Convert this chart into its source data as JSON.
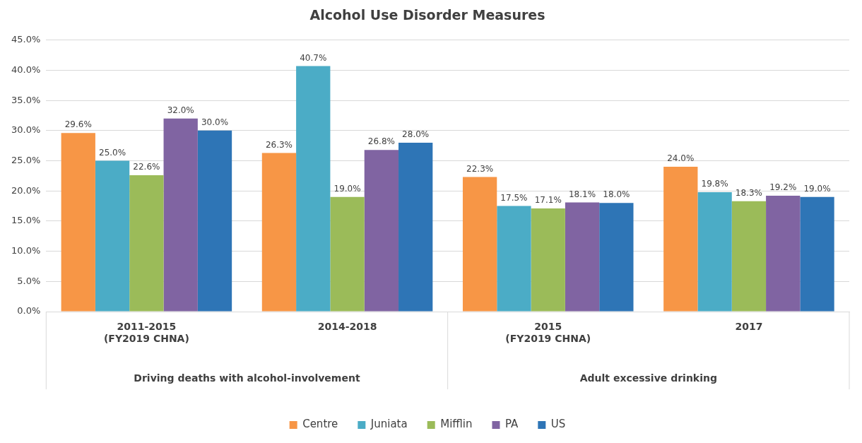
{
  "chart_data": {
    "type": "bar",
    "title": "Alcohol Use Disorder Measures",
    "categories": [
      "2011-2015\n(FY2019 CHNA)",
      "2014-2018",
      "2015\n(FY2019 CHNA)",
      "2017"
    ],
    "annotations": [
      "Driving deaths with alcohol-involvement",
      "Adult excessive drinking"
    ],
    "series": [
      {
        "name": "Centre",
        "color": "#f79646",
        "values": [
          29.6,
          26.3,
          22.3,
          24.0
        ],
        "value_labels": [
          "29.6%",
          "26.3%",
          "22.3%",
          "24.0%"
        ]
      },
      {
        "name": "Juniata",
        "color": "#4bacc6",
        "values": [
          25.0,
          40.7,
          17.5,
          19.8
        ],
        "value_labels": [
          "25.0%",
          "40.7%",
          "17.5%",
          "19.8%"
        ]
      },
      {
        "name": "Mifflin",
        "color": "#9bbb59",
        "values": [
          22.6,
          19.0,
          17.1,
          18.3
        ],
        "value_labels": [
          "22.6%",
          "19.0%",
          "17.1%",
          "18.3%"
        ]
      },
      {
        "name": "PA",
        "color": "#8064a2",
        "values": [
          32.0,
          26.8,
          18.1,
          19.2
        ],
        "value_labels": [
          "32.0%",
          "26.8%",
          "18.1%",
          "19.2%"
        ]
      },
      {
        "name": "US",
        "color": "#2e75b6",
        "values": [
          30.0,
          28.0,
          18.0,
          19.0
        ],
        "value_labels": [
          "30.0%",
          "28.0%",
          "18.0%",
          "19.0%"
        ]
      }
    ],
    "ylim": [
      0,
      45
    ],
    "yticks": [
      {
        "value": 0,
        "label": "0.0%"
      },
      {
        "value": 5,
        "label": "5.0%"
      },
      {
        "value": 10,
        "label": "10.0%"
      },
      {
        "value": 15,
        "label": "15.0%"
      },
      {
        "value": 20,
        "label": "20.0%"
      },
      {
        "value": 25,
        "label": "25.0%"
      },
      {
        "value": 30,
        "label": "30.0%"
      },
      {
        "value": 35,
        "label": "35.0%"
      },
      {
        "value": 40,
        "label": "40.0%"
      },
      {
        "value": 45,
        "label": "45.0%"
      }
    ],
    "grid": "y",
    "legend": "bottom"
  }
}
